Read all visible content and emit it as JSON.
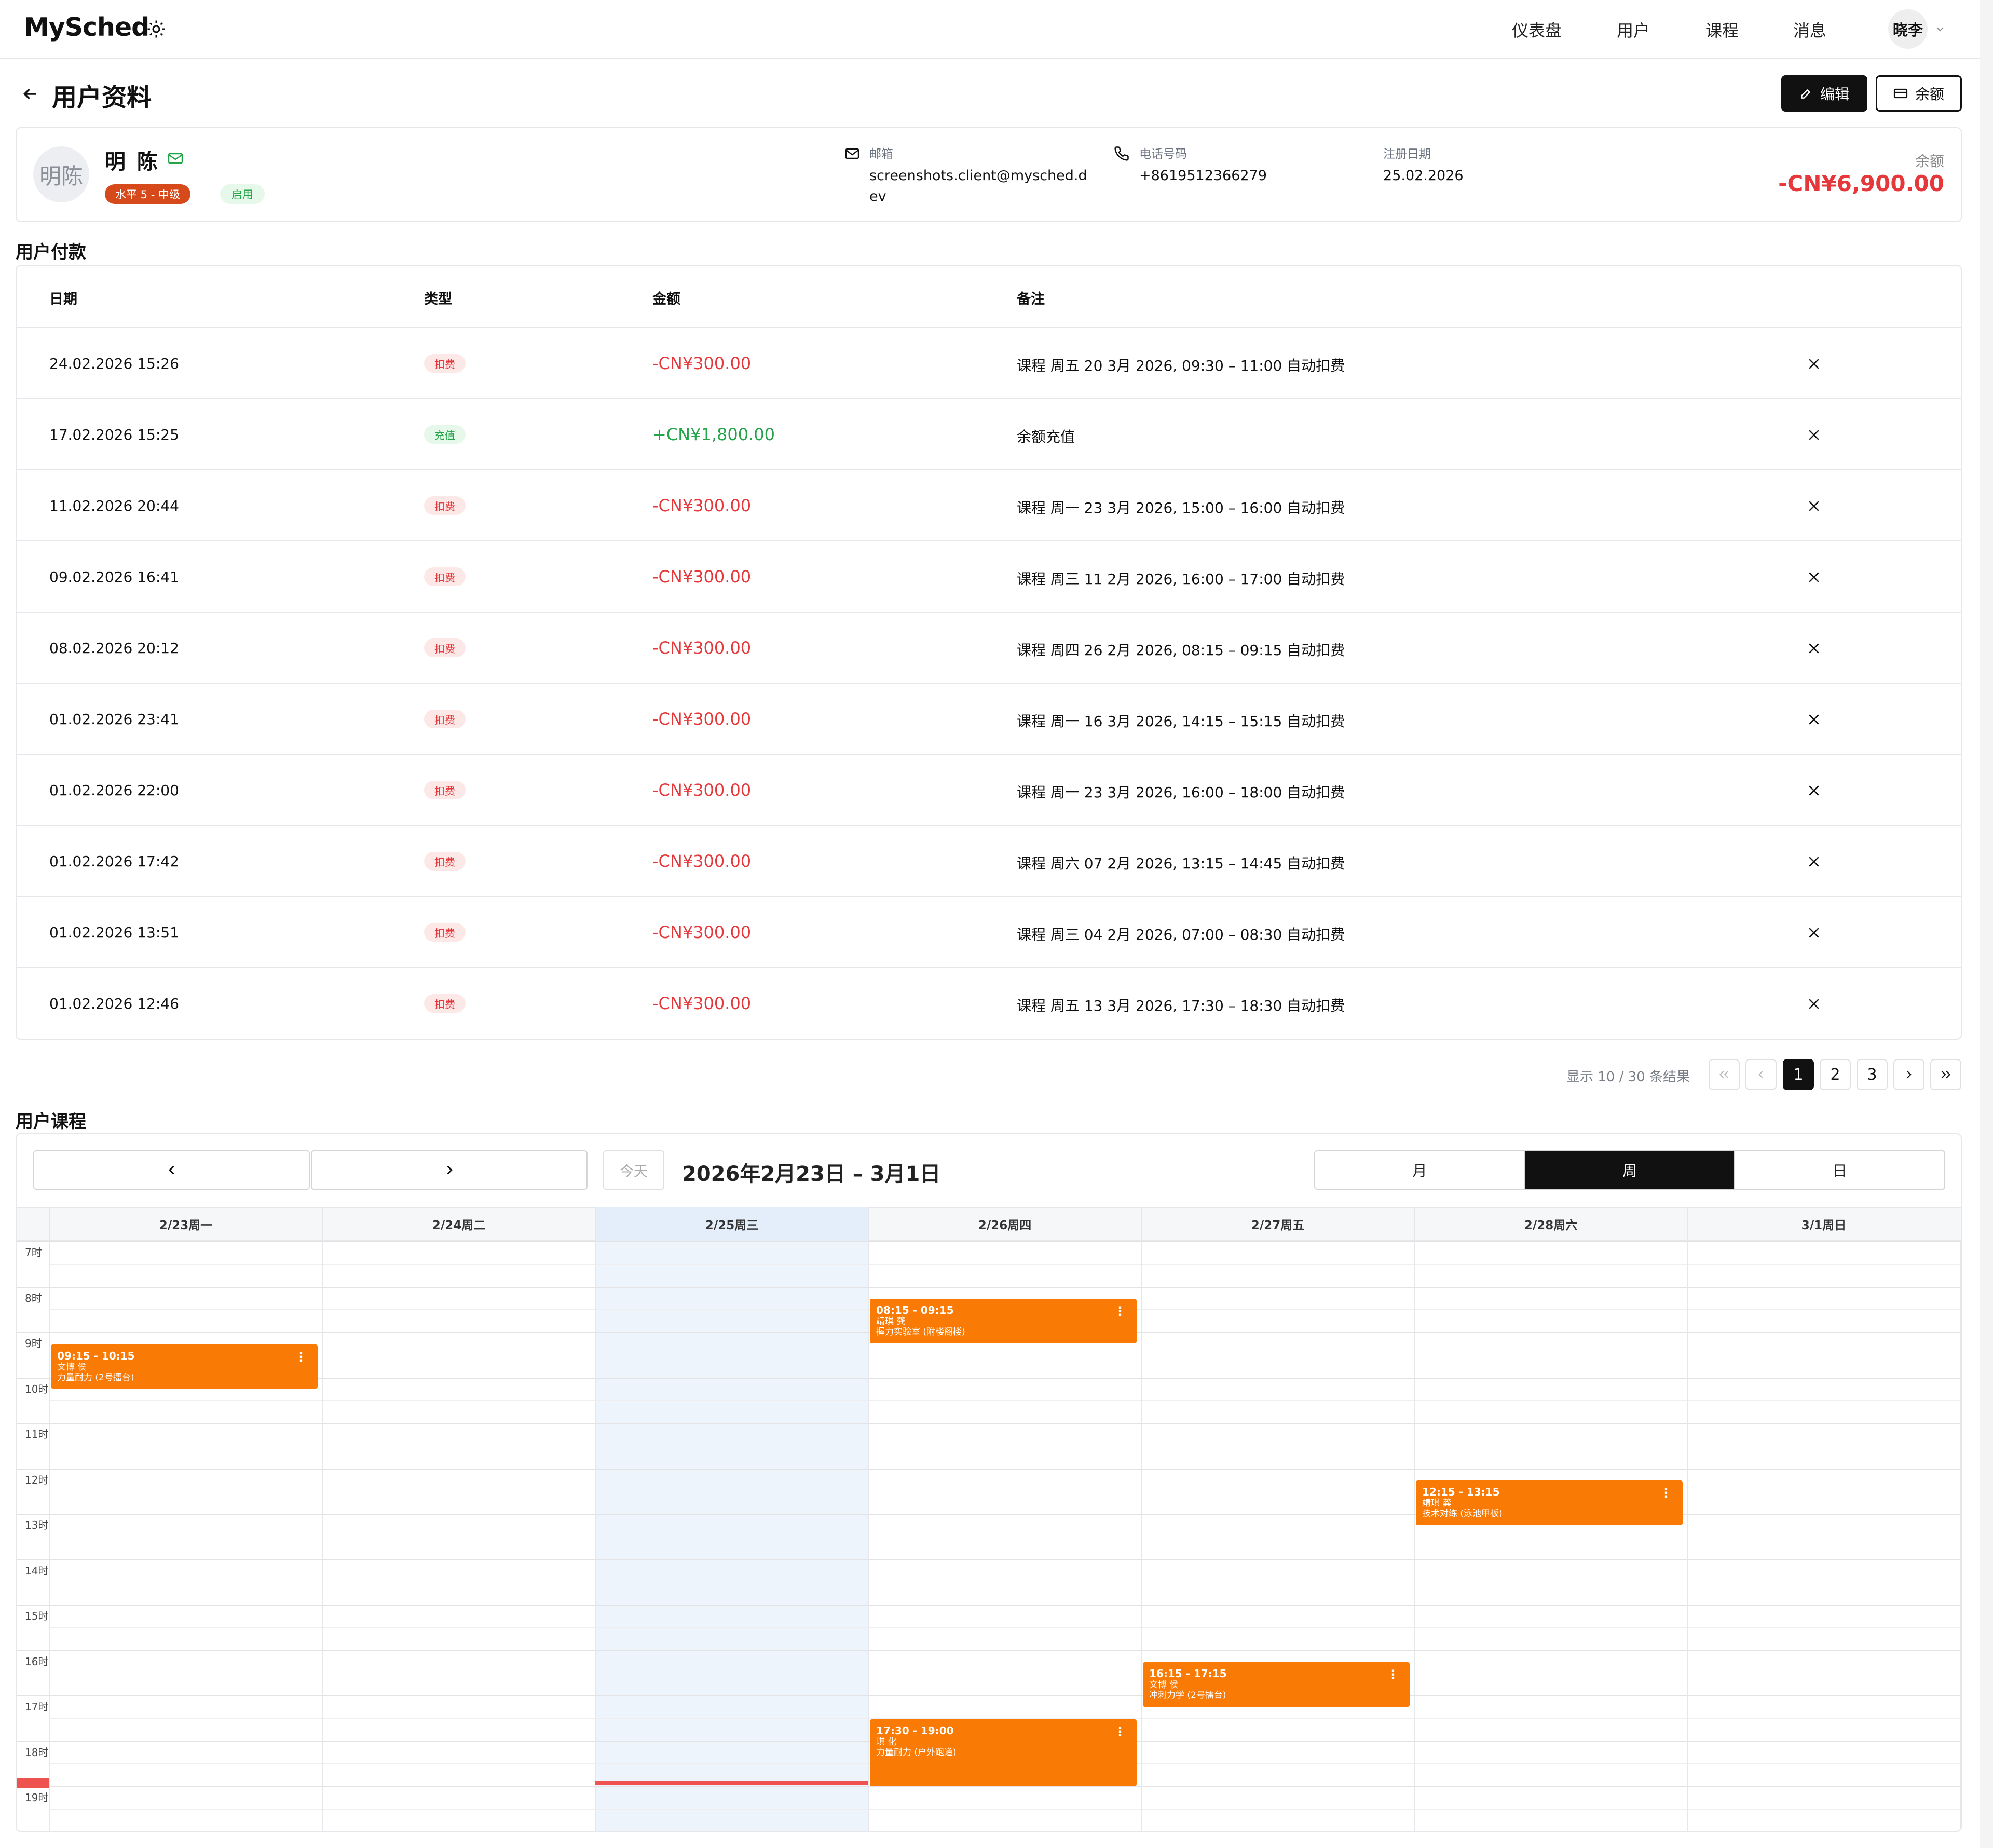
{
  "app": {
    "logo": "MySched",
    "nav": [
      "仪表盘",
      "用户",
      "课程",
      "消息"
    ],
    "user_short": "晓李"
  },
  "page": {
    "title": "用户资料",
    "edit_label": "编辑",
    "balance_label": "余额"
  },
  "profile": {
    "avatar_text": "明陈",
    "name": "明 陈",
    "level_badge": "水平 5 - 中级",
    "status_badge": "启用",
    "email_label": "邮箱",
    "email_line1": "screenshots.client@mysched.d",
    "email_line2": "ev",
    "phone_label": "电话号码",
    "phone": "+8619512366279",
    "reg_label": "注册日期",
    "reg_date": "25.02.2026",
    "balance_label": "余额",
    "balance_value": "-CN¥6,900.00"
  },
  "payments": {
    "section_title": "用户付款",
    "columns": [
      "日期",
      "类型",
      "金额",
      "备注"
    ],
    "rows": [
      {
        "date": "24.02.2026 15:26",
        "type": "扣费",
        "amount": "-CN¥300.00",
        "note": "课程 周五 20 3月 2026, 09:30 – 11:00 自动扣费"
      },
      {
        "date": "17.02.2026 15:25",
        "type": "充值",
        "amount": "+CN¥1,800.00",
        "note": "余额充值"
      },
      {
        "date": "11.02.2026 20:44",
        "type": "扣费",
        "amount": "-CN¥300.00",
        "note": "课程 周一 23 3月 2026, 15:00 – 16:00 自动扣费"
      },
      {
        "date": "09.02.2026 16:41",
        "type": "扣费",
        "amount": "-CN¥300.00",
        "note": "课程 周三 11 2月 2026, 16:00 – 17:00 自动扣费"
      },
      {
        "date": "08.02.2026 20:12",
        "type": "扣费",
        "amount": "-CN¥300.00",
        "note": "课程 周四 26 2月 2026, 08:15 – 09:15 自动扣费"
      },
      {
        "date": "01.02.2026 23:41",
        "type": "扣费",
        "amount": "-CN¥300.00",
        "note": "课程 周一 16 3月 2026, 14:15 – 15:15 自动扣费"
      },
      {
        "date": "01.02.2026 22:00",
        "type": "扣费",
        "amount": "-CN¥300.00",
        "note": "课程 周一 23 3月 2026, 16:00 – 18:00 自动扣费"
      },
      {
        "date": "01.02.2026 17:42",
        "type": "扣费",
        "amount": "-CN¥300.00",
        "note": "课程 周六 07 2月 2026, 13:15 – 14:45 自动扣费"
      },
      {
        "date": "01.02.2026 13:51",
        "type": "扣费",
        "amount": "-CN¥300.00",
        "note": "课程 周三 04 2月 2026, 07:00 – 08:30 自动扣费"
      },
      {
        "date": "01.02.2026 12:46",
        "type": "扣费",
        "amount": "-CN¥300.00",
        "note": "课程 周五 13 3月 2026, 17:30 – 18:30 自动扣费"
      }
    ],
    "pagination": {
      "summary": "显示 10 / 30 条结果",
      "pages": [
        "1",
        "2",
        "3"
      ],
      "current": "1"
    }
  },
  "calendar": {
    "section_title": "用户课程",
    "today_label": "今天",
    "range": "2026年2月23日 – 3月1日",
    "views": [
      "月",
      "周",
      "日"
    ],
    "active_view": "周",
    "days": [
      "2/23周一",
      "2/24周二",
      "2/25周三",
      "2/26周四",
      "2/27周五",
      "2/28周六",
      "3/1周日"
    ],
    "today_index": 2,
    "hours": [
      "7时",
      "8时",
      "9时",
      "10时",
      "11时",
      "12时",
      "13时",
      "14时",
      "15时",
      "16时",
      "17时",
      "18时",
      "19时"
    ],
    "events": [
      {
        "day": 0,
        "time": "09:15 - 10:15",
        "person": "文博 侯",
        "course": "力量耐力 (2号擂台)"
      },
      {
        "day": 3,
        "time": "08:15 - 09:15",
        "person": "靖琪 龚",
        "course": "握力实验室 (附楼阁楼)"
      },
      {
        "day": 5,
        "time": "12:15 - 13:15",
        "person": "靖琪 龚",
        "course": "技术对练 (泳池甲板)"
      },
      {
        "day": 4,
        "time": "16:15 - 17:15",
        "person": "文博 侯",
        "course": "冲刺力学 (2号擂台)"
      },
      {
        "day": 3,
        "time": "17:30 - 19:00",
        "person": "琪 化",
        "course": "力量耐力 (户外跑道)"
      }
    ]
  }
}
